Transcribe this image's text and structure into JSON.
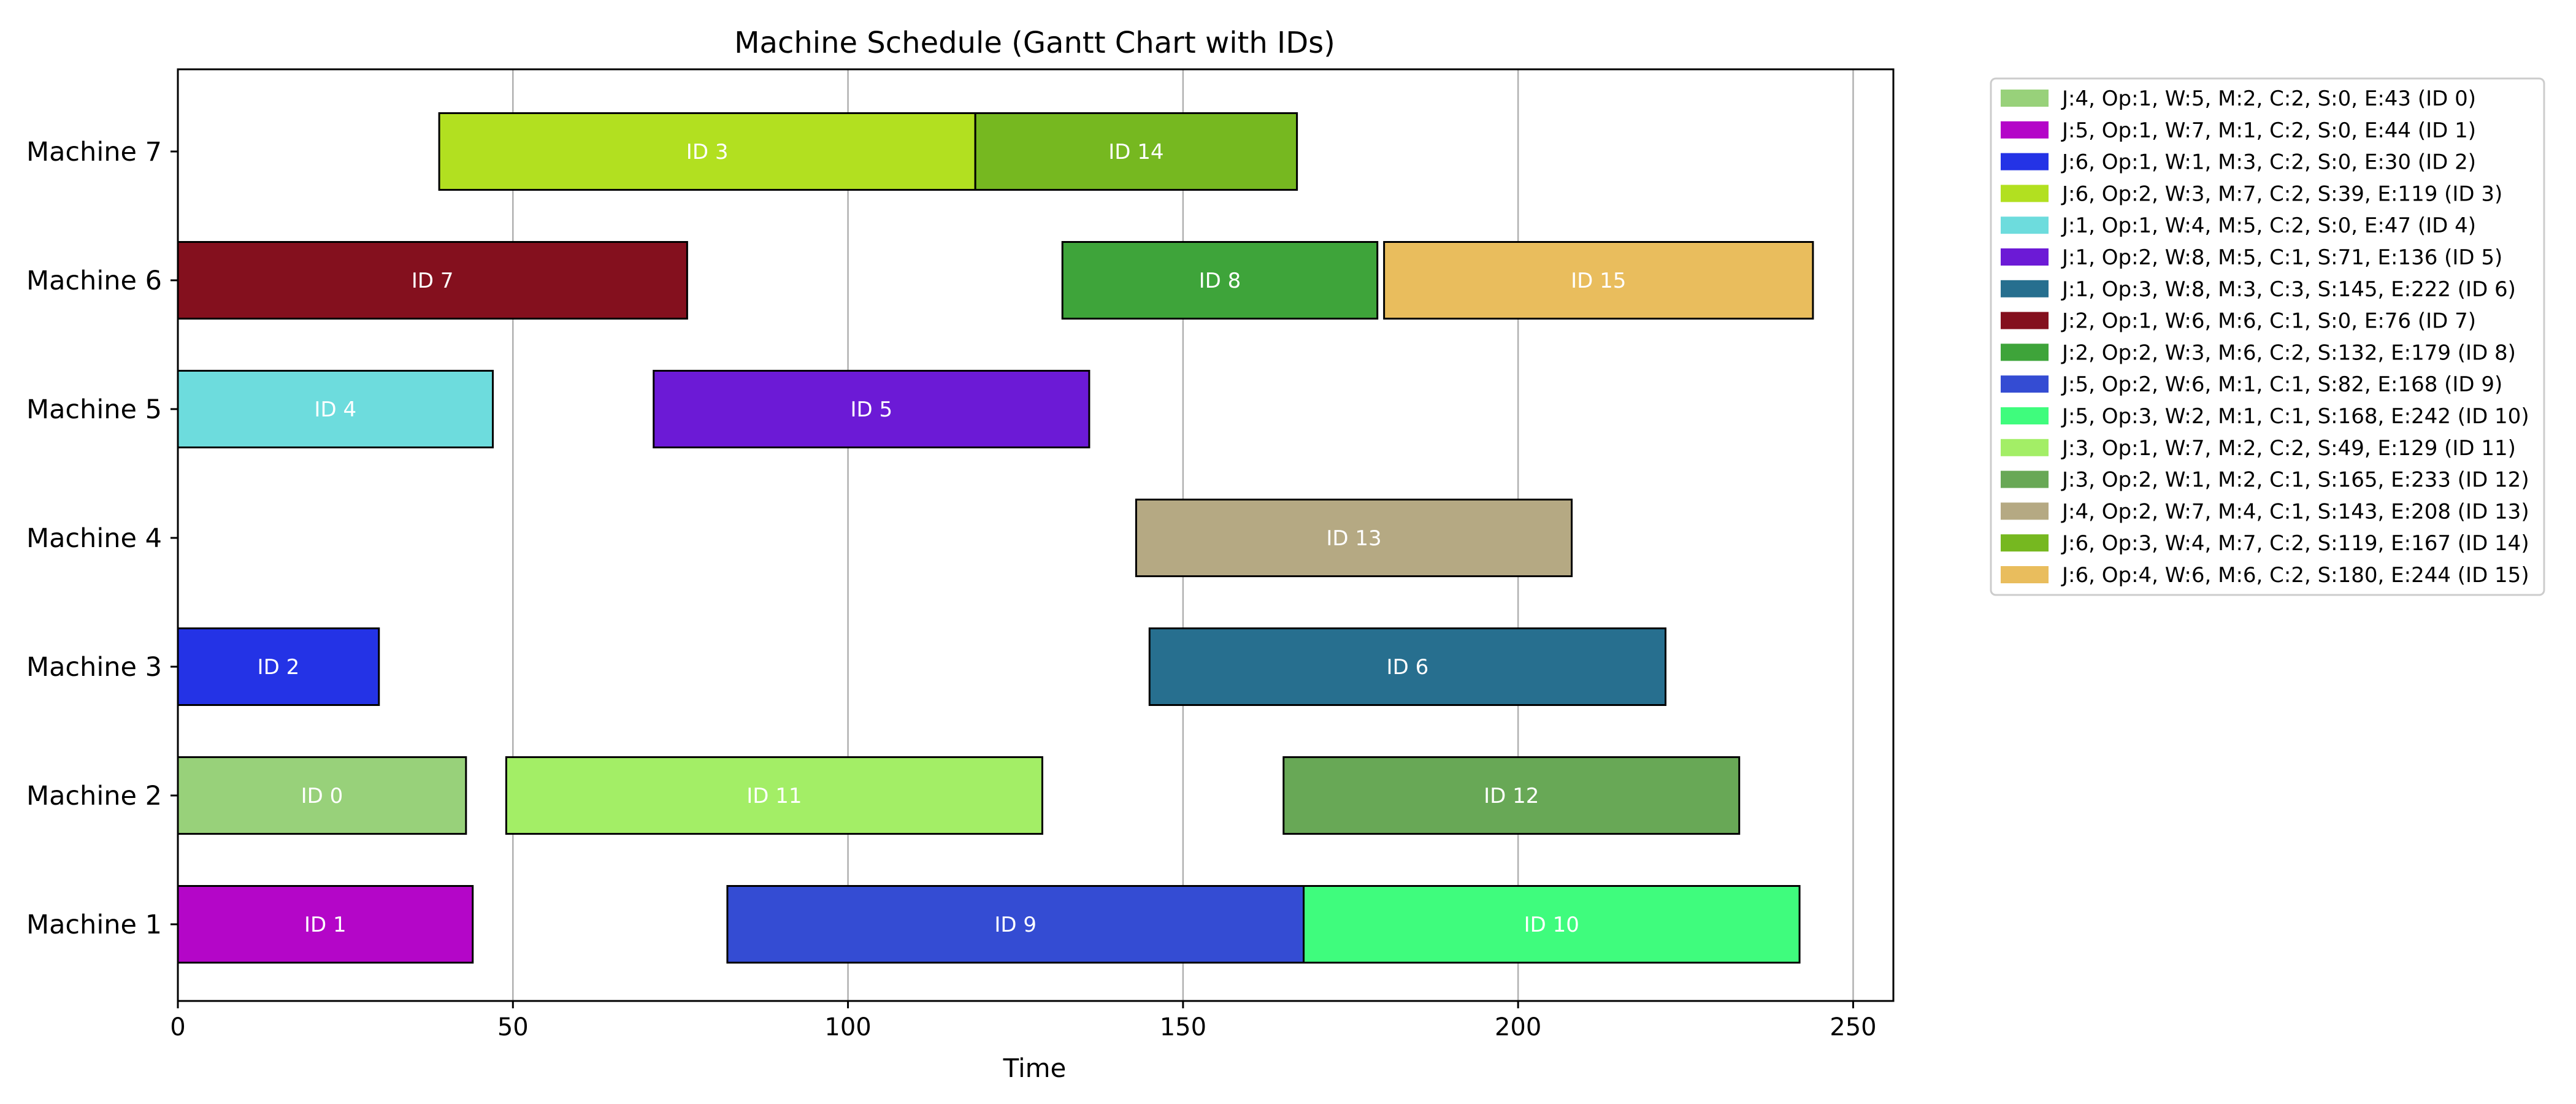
{
  "chart_data": {
    "type": "gantt",
    "title": "Machine Schedule (Gantt Chart with IDs)",
    "xlabel": "Time",
    "ylabel": "",
    "xlim": [
      0,
      256
    ],
    "xticks": [
      0,
      50,
      100,
      150,
      200,
      250
    ],
    "grid": "x",
    "legend_position": "outside-right",
    "machines": [
      "Machine 1",
      "Machine 2",
      "Machine 3",
      "Machine 4",
      "Machine 5",
      "Machine 6",
      "Machine 7"
    ],
    "tasks": [
      {
        "id": 0,
        "label": "ID 0",
        "machine": 2,
        "start": 0,
        "end": 43,
        "color": "#98d17a",
        "legend": "J:4, Op:1, W:5, M:2, C:2, S:0, E:43 (ID 0)"
      },
      {
        "id": 1,
        "label": "ID 1",
        "machine": 1,
        "start": 0,
        "end": 44,
        "color": "#b406c8",
        "legend": "J:5, Op:1, W:7, M:1, C:2, S:0, E:44 (ID 1)"
      },
      {
        "id": 2,
        "label": "ID 2",
        "machine": 3,
        "start": 0,
        "end": 30,
        "color": "#2433e6",
        "legend": "J:6, Op:1, W:1, M:3, C:2, S:0, E:30 (ID 2)"
      },
      {
        "id": 3,
        "label": "ID 3",
        "machine": 7,
        "start": 39,
        "end": 119,
        "color": "#b2e020",
        "legend": "J:6, Op:2, W:3, M:7, C:2, S:39, E:119 (ID 3)"
      },
      {
        "id": 4,
        "label": "ID 4",
        "machine": 5,
        "start": 0,
        "end": 47,
        "color": "#6ddcdd",
        "legend": "J:1, Op:1, W:4, M:5, C:2, S:0, E:47 (ID 4)"
      },
      {
        "id": 5,
        "label": "ID 5",
        "machine": 5,
        "start": 71,
        "end": 136,
        "color": "#6c1ad6",
        "legend": "J:1, Op:2, W:8, M:5, C:1, S:71, E:136 (ID 5)"
      },
      {
        "id": 6,
        "label": "ID 6",
        "machine": 3,
        "start": 145,
        "end": 222,
        "color": "#276f8f",
        "legend": "J:1, Op:3, W:8, M:3, C:3, S:145, E:222 (ID 6)"
      },
      {
        "id": 7,
        "label": "ID 7",
        "machine": 6,
        "start": 0,
        "end": 76,
        "color": "#84101e",
        "legend": "J:2, Op:1, W:6, M:6, C:1, S:0, E:76 (ID 7)"
      },
      {
        "id": 8,
        "label": "ID 8",
        "machine": 6,
        "start": 132,
        "end": 179,
        "color": "#3ea43a",
        "legend": "J:2, Op:2, W:3, M:6, C:2, S:132, E:179 (ID 8)"
      },
      {
        "id": 9,
        "label": "ID 9",
        "machine": 1,
        "start": 82,
        "end": 168,
        "color": "#344cd3",
        "legend": "J:5, Op:2, W:6, M:1, C:1, S:82, E:168 (ID 9)"
      },
      {
        "id": 10,
        "label": "ID 10",
        "machine": 1,
        "start": 168,
        "end": 242,
        "color": "#3ffc7d",
        "legend": "J:5, Op:3, W:2, M:1, C:1, S:168, E:242 (ID 10)"
      },
      {
        "id": 11,
        "label": "ID 11",
        "machine": 2,
        "start": 49,
        "end": 129,
        "color": "#a3ee66",
        "legend": "J:3, Op:1, W:7, M:2, C:2, S:49, E:129 (ID 11)"
      },
      {
        "id": 12,
        "label": "ID 12",
        "machine": 2,
        "start": 165,
        "end": 233,
        "color": "#68a856",
        "legend": "J:3, Op:2, W:1, M:2, C:1, S:165, E:233 (ID 12)"
      },
      {
        "id": 13,
        "label": "ID 13",
        "machine": 4,
        "start": 143,
        "end": 208,
        "color": "#b5a983",
        "legend": "J:4, Op:2, W:7, M:4, C:1, S:143, E:208 (ID 13)"
      },
      {
        "id": 14,
        "label": "ID 14",
        "machine": 7,
        "start": 119,
        "end": 167,
        "color": "#76b820",
        "legend": "J:6, Op:3, W:4, M:7, C:2, S:119, E:167 (ID 14)"
      },
      {
        "id": 15,
        "label": "ID 15",
        "machine": 6,
        "start": 180,
        "end": 244,
        "color": "#e9bd5d",
        "legend": "J:6, Op:4, W:6, M:6, C:2, S:180, E:244 (ID 15)"
      }
    ]
  }
}
